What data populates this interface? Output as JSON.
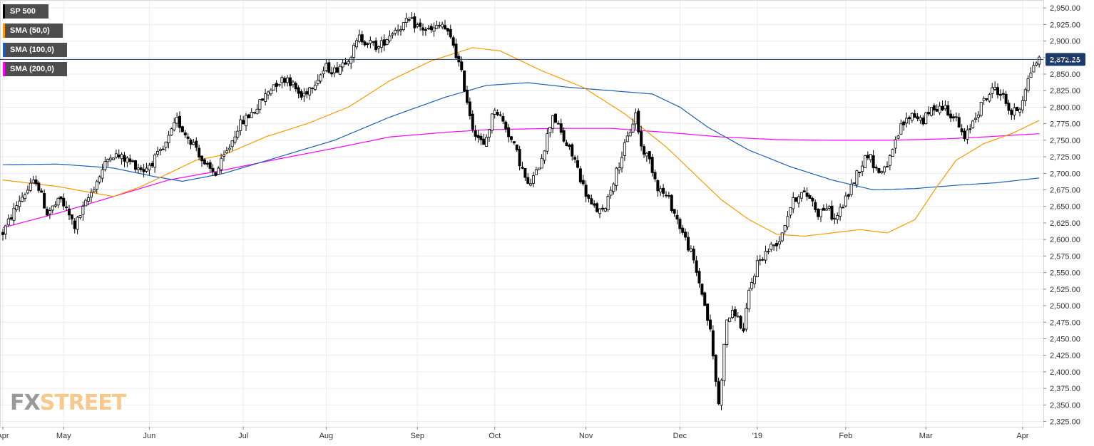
{
  "legend": [
    {
      "label": "SP 500",
      "color": "#000000"
    },
    {
      "label": "SMA (50,0)",
      "color": "#ff9900"
    },
    {
      "label": "SMA (100,0)",
      "color": "#1f5fb5"
    },
    {
      "label": "SMA (200,0)",
      "color": "#ff00ff"
    }
  ],
  "watermark": {
    "part1": "FX",
    "part2": "STREET"
  },
  "chart_data": {
    "type": "candlestick",
    "title": "",
    "y_ticks": [
      "2,325.00",
      "2,350.00",
      "2,375.00",
      "2,400.00",
      "2,425.00",
      "2,450.00",
      "2,475.00",
      "2,500.00",
      "2,525.00",
      "2,550.00",
      "2,575.00",
      "2,600.00",
      "2,625.00",
      "2,650.00",
      "2,675.00",
      "2,700.00",
      "2,725.00",
      "2,750.00",
      "2,775.00",
      "2,800.00",
      "2,825.00",
      "2,850.00",
      "2,875.00",
      "2,900.00",
      "2,925.00",
      "2,950.00"
    ],
    "x_ticks": [
      "Apr",
      "May",
      "Jun",
      "Jul",
      "Aug",
      "Sep",
      "Oct",
      "Nov",
      "Dec",
      "'19",
      "Feb",
      "Mar",
      "Apr"
    ],
    "ylim": [
      2317,
      2962
    ],
    "last_price": 2872.25,
    "last_price_label": "2,872.25",
    "colors": {
      "up": "#ffffff",
      "down": "#000000",
      "wick": "#000000",
      "sma50": "#ff9900",
      "sma100": "#1f5fb5",
      "sma200": "#ff00ff",
      "price_line": "#1b3b6f",
      "price_box": "#1b3b6f",
      "grid": "#ececec"
    },
    "series": [
      {
        "name": "SP 500",
        "type": "ohlc",
        "anchors": [
          [
            0,
            2610
          ],
          [
            6,
            2660
          ],
          [
            12,
            2690
          ],
          [
            16,
            2640
          ],
          [
            21,
            2660
          ],
          [
            26,
            2620
          ],
          [
            33,
            2680
          ],
          [
            39,
            2730
          ],
          [
            45,
            2720
          ],
          [
            51,
            2705
          ],
          [
            58,
            2735
          ],
          [
            63,
            2780
          ],
          [
            66,
            2760
          ],
          [
            70,
            2740
          ],
          [
            73,
            2710
          ],
          [
            77,
            2700
          ],
          [
            82,
            2740
          ],
          [
            85,
            2770
          ],
          [
            92,
            2800
          ],
          [
            98,
            2835
          ],
          [
            103,
            2845
          ],
          [
            108,
            2815
          ],
          [
            112,
            2835
          ],
          [
            117,
            2860
          ],
          [
            120,
            2855
          ],
          [
            126,
            2880
          ],
          [
            129,
            2905
          ],
          [
            136,
            2890
          ],
          [
            141,
            2915
          ],
          [
            147,
            2930
          ],
          [
            151,
            2920
          ],
          [
            155,
            2915
          ],
          [
            159,
            2925
          ],
          [
            163,
            2895
          ],
          [
            166,
            2850
          ],
          [
            170,
            2770
          ],
          [
            174,
            2740
          ],
          [
            178,
            2800
          ],
          [
            182,
            2770
          ],
          [
            186,
            2730
          ],
          [
            190,
            2680
          ],
          [
            193,
            2700
          ],
          [
            196,
            2740
          ],
          [
            199,
            2790
          ],
          [
            203,
            2750
          ],
          [
            207,
            2720
          ],
          [
            210,
            2680
          ],
          [
            213,
            2650
          ],
          [
            217,
            2640
          ],
          [
            221,
            2690
          ],
          [
            225,
            2740
          ],
          [
            229,
            2790
          ],
          [
            231,
            2740
          ],
          [
            234,
            2720
          ],
          [
            237,
            2680
          ],
          [
            241,
            2660
          ],
          [
            245,
            2620
          ],
          [
            249,
            2580
          ],
          [
            253,
            2520
          ],
          [
            256,
            2460
          ],
          [
            259,
            2350
          ],
          [
            262,
            2480
          ],
          [
            265,
            2490
          ],
          [
            268,
            2460
          ],
          [
            270,
            2520
          ],
          [
            273,
            2565
          ],
          [
            277,
            2585
          ],
          [
            281,
            2600
          ],
          [
            285,
            2650
          ],
          [
            288,
            2670
          ],
          [
            292,
            2665
          ],
          [
            295,
            2640
          ],
          [
            298,
            2650
          ],
          [
            301,
            2630
          ],
          [
            305,
            2660
          ],
          [
            309,
            2700
          ],
          [
            313,
            2730
          ],
          [
            317,
            2700
          ],
          [
            321,
            2720
          ],
          [
            325,
            2770
          ],
          [
            329,
            2790
          ],
          [
            333,
            2780
          ],
          [
            337,
            2800
          ],
          [
            341,
            2800
          ],
          [
            345,
            2780
          ],
          [
            348,
            2750
          ],
          [
            351,
            2780
          ],
          [
            355,
            2810
          ],
          [
            359,
            2830
          ],
          [
            362,
            2815
          ],
          [
            365,
            2790
          ],
          [
            368,
            2800
          ],
          [
            370,
            2830
          ],
          [
            373,
            2865
          ],
          [
            375,
            2872
          ]
        ]
      },
      {
        "name": "SMA (50,0)",
        "type": "line",
        "points": [
          [
            0,
            2690
          ],
          [
            20,
            2680
          ],
          [
            40,
            2665
          ],
          [
            50,
            2680
          ],
          [
            60,
            2700
          ],
          [
            70,
            2720
          ],
          [
            80,
            2728
          ],
          [
            95,
            2755
          ],
          [
            110,
            2775
          ],
          [
            125,
            2800
          ],
          [
            140,
            2840
          ],
          [
            155,
            2870
          ],
          [
            170,
            2890
          ],
          [
            180,
            2885
          ],
          [
            195,
            2855
          ],
          [
            210,
            2830
          ],
          [
            225,
            2790
          ],
          [
            240,
            2740
          ],
          [
            250,
            2700
          ],
          [
            260,
            2660
          ],
          [
            270,
            2630
          ],
          [
            280,
            2608
          ],
          [
            290,
            2605
          ],
          [
            300,
            2610
          ],
          [
            310,
            2615
          ],
          [
            320,
            2610
          ],
          [
            330,
            2630
          ],
          [
            338,
            2680
          ],
          [
            345,
            2720
          ],
          [
            355,
            2745
          ],
          [
            365,
            2760
          ],
          [
            375,
            2780
          ]
        ]
      },
      {
        "name": "SMA (100,0)",
        "type": "line",
        "points": [
          [
            0,
            2713
          ],
          [
            20,
            2714
          ],
          [
            40,
            2708
          ],
          [
            55,
            2695
          ],
          [
            65,
            2688
          ],
          [
            80,
            2700
          ],
          [
            100,
            2725
          ],
          [
            120,
            2750
          ],
          [
            140,
            2785
          ],
          [
            160,
            2815
          ],
          [
            175,
            2833
          ],
          [
            190,
            2837
          ],
          [
            205,
            2830
          ],
          [
            220,
            2825
          ],
          [
            235,
            2820
          ],
          [
            245,
            2800
          ],
          [
            255,
            2770
          ],
          [
            270,
            2735
          ],
          [
            285,
            2710
          ],
          [
            300,
            2690
          ],
          [
            315,
            2675
          ],
          [
            330,
            2677
          ],
          [
            345,
            2682
          ],
          [
            360,
            2686
          ],
          [
            375,
            2693
          ]
        ]
      },
      {
        "name": "SMA (200,0)",
        "type": "line",
        "points": [
          [
            0,
            2618
          ],
          [
            20,
            2640
          ],
          [
            40,
            2665
          ],
          [
            60,
            2690
          ],
          [
            80,
            2705
          ],
          [
            100,
            2722
          ],
          [
            120,
            2738
          ],
          [
            140,
            2755
          ],
          [
            160,
            2762
          ],
          [
            175,
            2766
          ],
          [
            200,
            2768
          ],
          [
            220,
            2768
          ],
          [
            240,
            2762
          ],
          [
            260,
            2755
          ],
          [
            280,
            2751
          ],
          [
            300,
            2750
          ],
          [
            320,
            2750
          ],
          [
            340,
            2752
          ],
          [
            355,
            2755
          ],
          [
            375,
            2760
          ]
        ]
      }
    ]
  }
}
